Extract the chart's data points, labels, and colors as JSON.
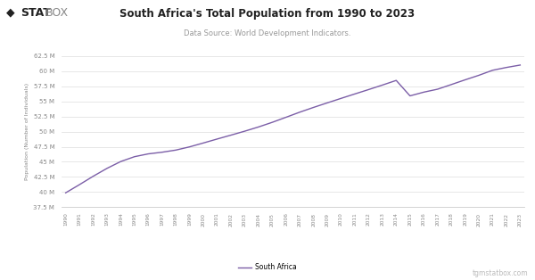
{
  "title": "South Africa's Total Population from 1990 to 2023",
  "subtitle": "Data Source: World Development Indicators.",
  "ylabel": "Population (Number of Individuals)",
  "legend_label": "South Africa",
  "watermark": "tgmstatbox.com",
  "line_color": "#7b5ea7",
  "background_color": "#ffffff",
  "years": [
    1990,
    1991,
    1992,
    1993,
    1994,
    1995,
    1996,
    1997,
    1998,
    1999,
    2000,
    2001,
    2002,
    2003,
    2004,
    2005,
    2006,
    2007,
    2008,
    2009,
    2010,
    2011,
    2012,
    2013,
    2014,
    2015,
    2016,
    2017,
    2018,
    2019,
    2020,
    2021,
    2022,
    2023
  ],
  "population": [
    39878745,
    41226093,
    42618562,
    43920671,
    45053753,
    45854765,
    46318913,
    46590870,
    46944891,
    47479046,
    48119485,
    48774636,
    49415651,
    50068773,
    50766519,
    51534406,
    52370165,
    53216028,
    54001990,
    54755765,
    55497337,
    56230444,
    56952041,
    57697851,
    58463108,
    55908900,
    56521827,
    57009756,
    57779622,
    58558270,
    59308690,
    60142978,
    60604992,
    61003931
  ],
  "ylim_min": 37500000,
  "ylim_max": 62500000,
  "yticks": [
    37500000,
    40000000,
    42500000,
    45000000,
    47500000,
    50000000,
    52500000,
    55000000,
    57500000,
    60000000,
    62500000
  ],
  "ytick_labels": [
    "37.5 M",
    "40 M",
    "42.5 M",
    "45 M",
    "47.5 M",
    "50 M",
    "52.5 M",
    "55 M",
    "57.5 M",
    "60 M",
    "62.5 M"
  ],
  "logo_diamond": "◆",
  "logo_stat": "STAT",
  "logo_box": "BOX"
}
